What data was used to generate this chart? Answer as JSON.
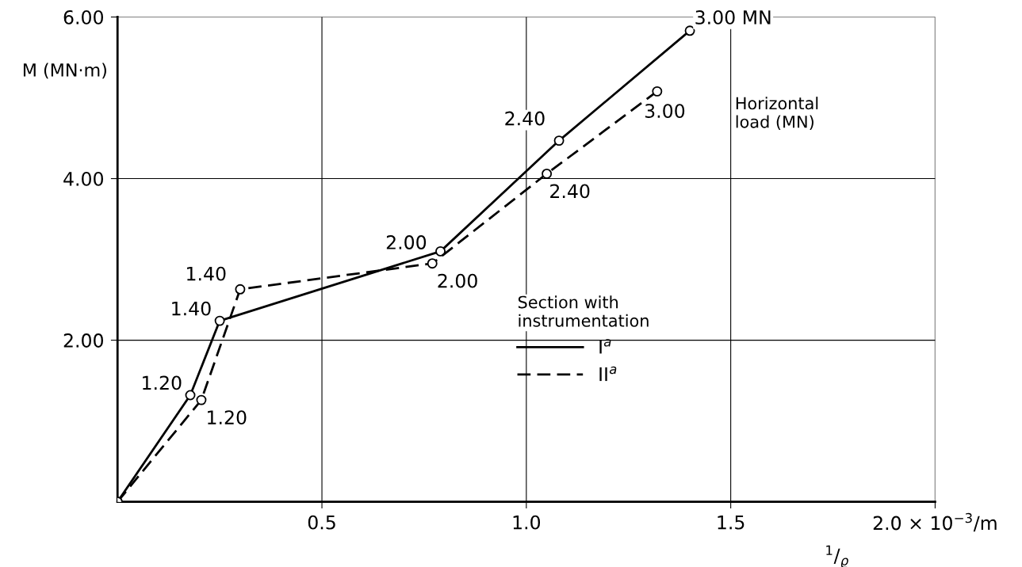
{
  "chart_data": {
    "type": "line",
    "xlabel": "$^{1}$/$_{ϱ}$",
    "ylabel": "M (MN·m)",
    "legend_title": "Section with\ninstrumentation",
    "xlim": [
      0,
      2.0
    ],
    "ylim": [
      0,
      6.0
    ],
    "xticks": [
      {
        "value": 0.5,
        "label": "0.5"
      },
      {
        "value": 1.0,
        "label": "1.0"
      },
      {
        "value": 1.5,
        "label": "1.5"
      },
      {
        "value": 2.0,
        "label": "2.0 × 10$^{−3}$/m"
      }
    ],
    "yticks": [
      {
        "value": 2.0,
        "label": "2.00"
      },
      {
        "value": 4.0,
        "label": "4.00"
      },
      {
        "value": 6.0,
        "label": "6.00"
      }
    ],
    "grid": true,
    "legend": "bottom",
    "marker": "circle",
    "series": [
      {
        "name": "I$^{a}$",
        "color": "#000000",
        "line_style": "solid",
        "x": [
          0,
          0.178,
          0.25,
          0.79,
          1.08,
          1.4
        ],
        "values": [
          0,
          1.32,
          2.24,
          3.1,
          4.47,
          5.83
        ]
      },
      {
        "name": "II$^{a}$",
        "color": "#000000",
        "line_style": "dashed",
        "x": [
          0,
          0.205,
          0.3,
          0.77,
          1.05,
          1.32
        ],
        "values": [
          0,
          1.26,
          2.63,
          2.95,
          4.06,
          5.08
        ]
      }
    ],
    "annotations": [
      {
        "text": "1.20",
        "x": 0.178,
        "y": 1.32
      },
      {
        "text": "1.40",
        "x": 0.25,
        "y": 2.24
      },
      {
        "text": "2.00",
        "x": 0.79,
        "y": 3.1
      },
      {
        "text": "2.40",
        "x": 1.08,
        "y": 4.47
      },
      {
        "text": "3.00 MN",
        "x": 1.4,
        "y": 5.83
      },
      {
        "text": "1.20",
        "x": 0.205,
        "y": 1.26
      },
      {
        "text": "1.40",
        "x": 0.3,
        "y": 2.63
      },
      {
        "text": "2.00",
        "x": 0.77,
        "y": 2.95
      },
      {
        "text": "2.40",
        "x": 1.05,
        "y": 4.06
      },
      {
        "text": "3.00",
        "x": 1.32,
        "y": 5.08
      },
      "Horizontal\nload (MN)"
    ]
  }
}
